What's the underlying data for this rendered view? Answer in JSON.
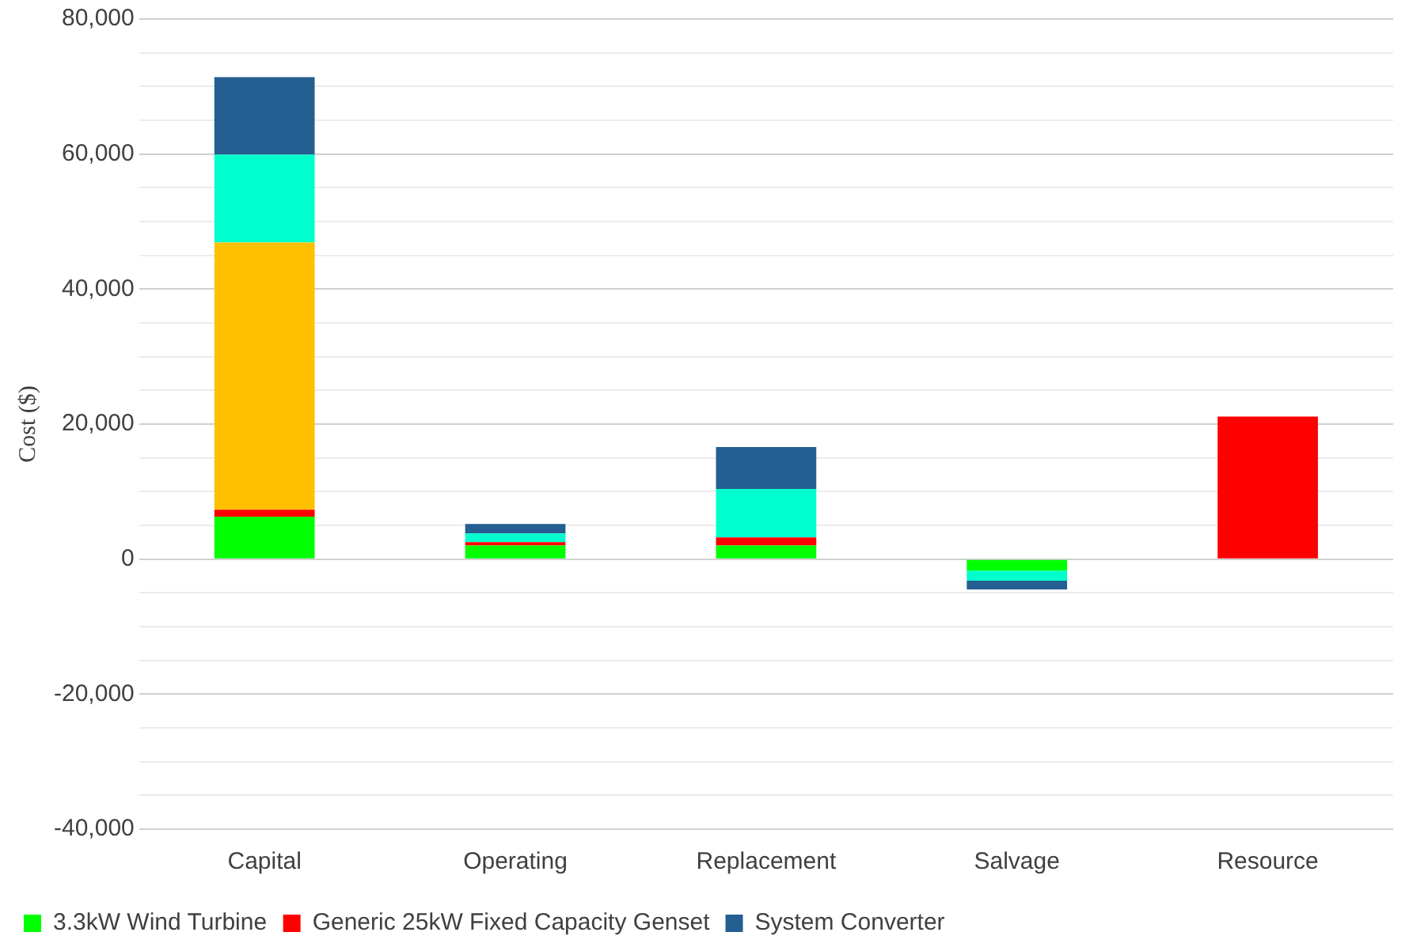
{
  "chart_data": {
    "type": "bar",
    "stacked": true,
    "ylabel": "Cost ($)",
    "categories": [
      "Capital",
      "Operating",
      "Replacement",
      "Salvage",
      "Resource"
    ],
    "series": [
      {
        "name": "3.3kW Wind Turbine",
        "color": "#00ff00",
        "values": [
          6300,
          2000,
          2000,
          -1700,
          0
        ]
      },
      {
        "name": "Generic 25kW Fixed Capacity Genset",
        "color": "#ff0000",
        "values": [
          1000,
          500,
          1200,
          0,
          21100
        ]
      },
      {
        "color": "#ffc000",
        "values": [
          39600,
          0,
          0,
          0,
          0
        ]
      },
      {
        "color": "#00ffcc",
        "values": [
          13000,
          1300,
          7200,
          -1500,
          0
        ]
      },
      {
        "name": "System Converter",
        "color": "#255e91",
        "values": [
          11500,
          1400,
          6200,
          -1300,
          0
        ]
      }
    ],
    "ylim": [
      -40000,
      80000
    ],
    "yticks": [
      {
        "value": -40000,
        "label": "-40,000"
      },
      {
        "value": -35000,
        "label": null
      },
      {
        "value": -30000,
        "label": null
      },
      {
        "value": -25000,
        "label": null
      },
      {
        "value": -20000,
        "label": "-20,000"
      },
      {
        "value": -15000,
        "label": null
      },
      {
        "value": -10000,
        "label": null
      },
      {
        "value": -5000,
        "label": null
      },
      0,
      {
        "value": 5000,
        "label": null
      },
      {
        "value": 10000,
        "label": null
      },
      {
        "value": 15000,
        "label": null
      },
      {
        "value": 20000,
        "label": "20,000"
      },
      {
        "value": 25000,
        "label": null
      },
      {
        "value": 30000,
        "label": null
      },
      {
        "value": 35000,
        "label": null
      },
      {
        "value": 40000,
        "label": "40,000"
      },
      {
        "value": 45000,
        "label": null
      },
      {
        "value": 50000,
        "label": null
      },
      {
        "value": 55000,
        "label": null
      },
      {
        "value": 60000,
        "label": "60,000"
      },
      {
        "value": 65000,
        "label": null
      },
      {
        "value": 70000,
        "label": null
      },
      {
        "value": 75000,
        "label": null
      },
      {
        "value": 80000,
        "label": "80,000"
      }
    ],
    "grid": "y",
    "legend": "bottom"
  }
}
